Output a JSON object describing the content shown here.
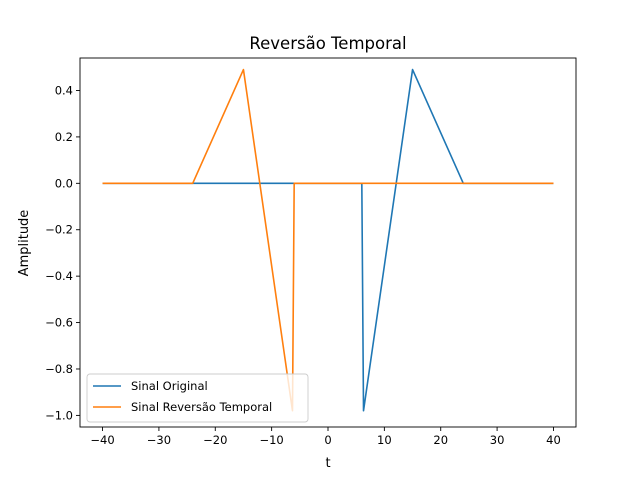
{
  "chart_data": {
    "type": "line",
    "title": "Reversão Temporal",
    "xlabel": "t",
    "ylabel": "Amplitude",
    "xlim": [
      -44,
      44
    ],
    "ylim": [
      -1.05,
      0.54
    ],
    "xticks": [
      -40,
      -30,
      -20,
      -10,
      0,
      10,
      20,
      30,
      40
    ],
    "xtick_labels": [
      "−40",
      "−30",
      "−20",
      "−10",
      "0",
      "10",
      "20",
      "30",
      "40"
    ],
    "yticks": [
      -1.0,
      -0.8,
      -0.6,
      -0.4,
      -0.2,
      0.0,
      0.2,
      0.4
    ],
    "ytick_labels": [
      "−1.0",
      "−0.8",
      "−0.6",
      "−0.4",
      "−0.2",
      "0.0",
      "0.2",
      "0.4"
    ],
    "grid": false,
    "legend_position": "lower-left",
    "series": [
      {
        "name": "Sinal Original",
        "color": "#1f77b4",
        "x": [
          -40,
          6,
          6.3,
          15,
          24,
          40
        ],
        "y": [
          0,
          0,
          -0.98,
          0.49,
          0,
          0
        ]
      },
      {
        "name": "Sinal Reversão Temporal",
        "color": "#ff7f0e",
        "x": [
          -40,
          -24,
          -15,
          -6.3,
          -6,
          40
        ],
        "y": [
          0,
          0,
          0.49,
          -0.98,
          0,
          0
        ]
      }
    ]
  }
}
